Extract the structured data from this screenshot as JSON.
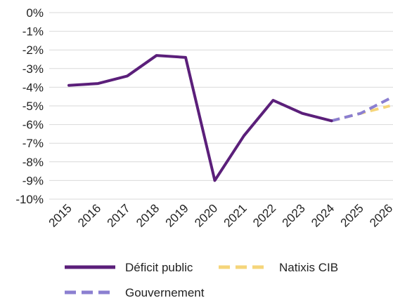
{
  "chart_data": {
    "type": "line",
    "title": "",
    "xlabel": "",
    "ylabel": "",
    "x": [
      "2015",
      "2016",
      "2017",
      "2018",
      "2019",
      "2020",
      "2021",
      "2022",
      "2023",
      "2024",
      "2025",
      "2026"
    ],
    "ylim": [
      -10,
      0
    ],
    "y_ticks": [
      "0%",
      "-1%",
      "-2%",
      "-3%",
      "-4%",
      "-5%",
      "-6%",
      "-7%",
      "-8%",
      "-9%",
      "-10%"
    ],
    "grid": "horizontal",
    "legend_position": "bottom",
    "series": [
      {
        "name": "Déficit public",
        "color": "#5b1f7a",
        "style": "solid",
        "x": [
          "2015",
          "2016",
          "2017",
          "2018",
          "2019",
          "2020",
          "2021",
          "2022",
          "2023",
          "2024"
        ],
        "values": [
          -3.9,
          -3.8,
          -3.4,
          -2.3,
          -2.4,
          -9.0,
          -6.6,
          -4.7,
          -5.4,
          -5.8
        ]
      },
      {
        "name": "Natixis CIB",
        "color": "#f5d57a",
        "style": "dashed",
        "x": [
          "2024",
          "2025",
          "2026"
        ],
        "values": [
          -5.8,
          -5.4,
          -5.0
        ]
      },
      {
        "name": "Gouvernement",
        "color": "#8b7fd1",
        "style": "dashed",
        "x": [
          "2024",
          "2025",
          "2026"
        ],
        "values": [
          -5.8,
          -5.4,
          -4.6
        ]
      }
    ],
    "legend": [
      {
        "label": "Déficit public",
        "color": "#5b1f7a",
        "style": "solid"
      },
      {
        "label": "Natixis CIB",
        "color": "#f5d57a",
        "style": "dashed"
      },
      {
        "label": "Gouvernement",
        "color": "#8b7fd1",
        "style": "dashed"
      }
    ]
  }
}
